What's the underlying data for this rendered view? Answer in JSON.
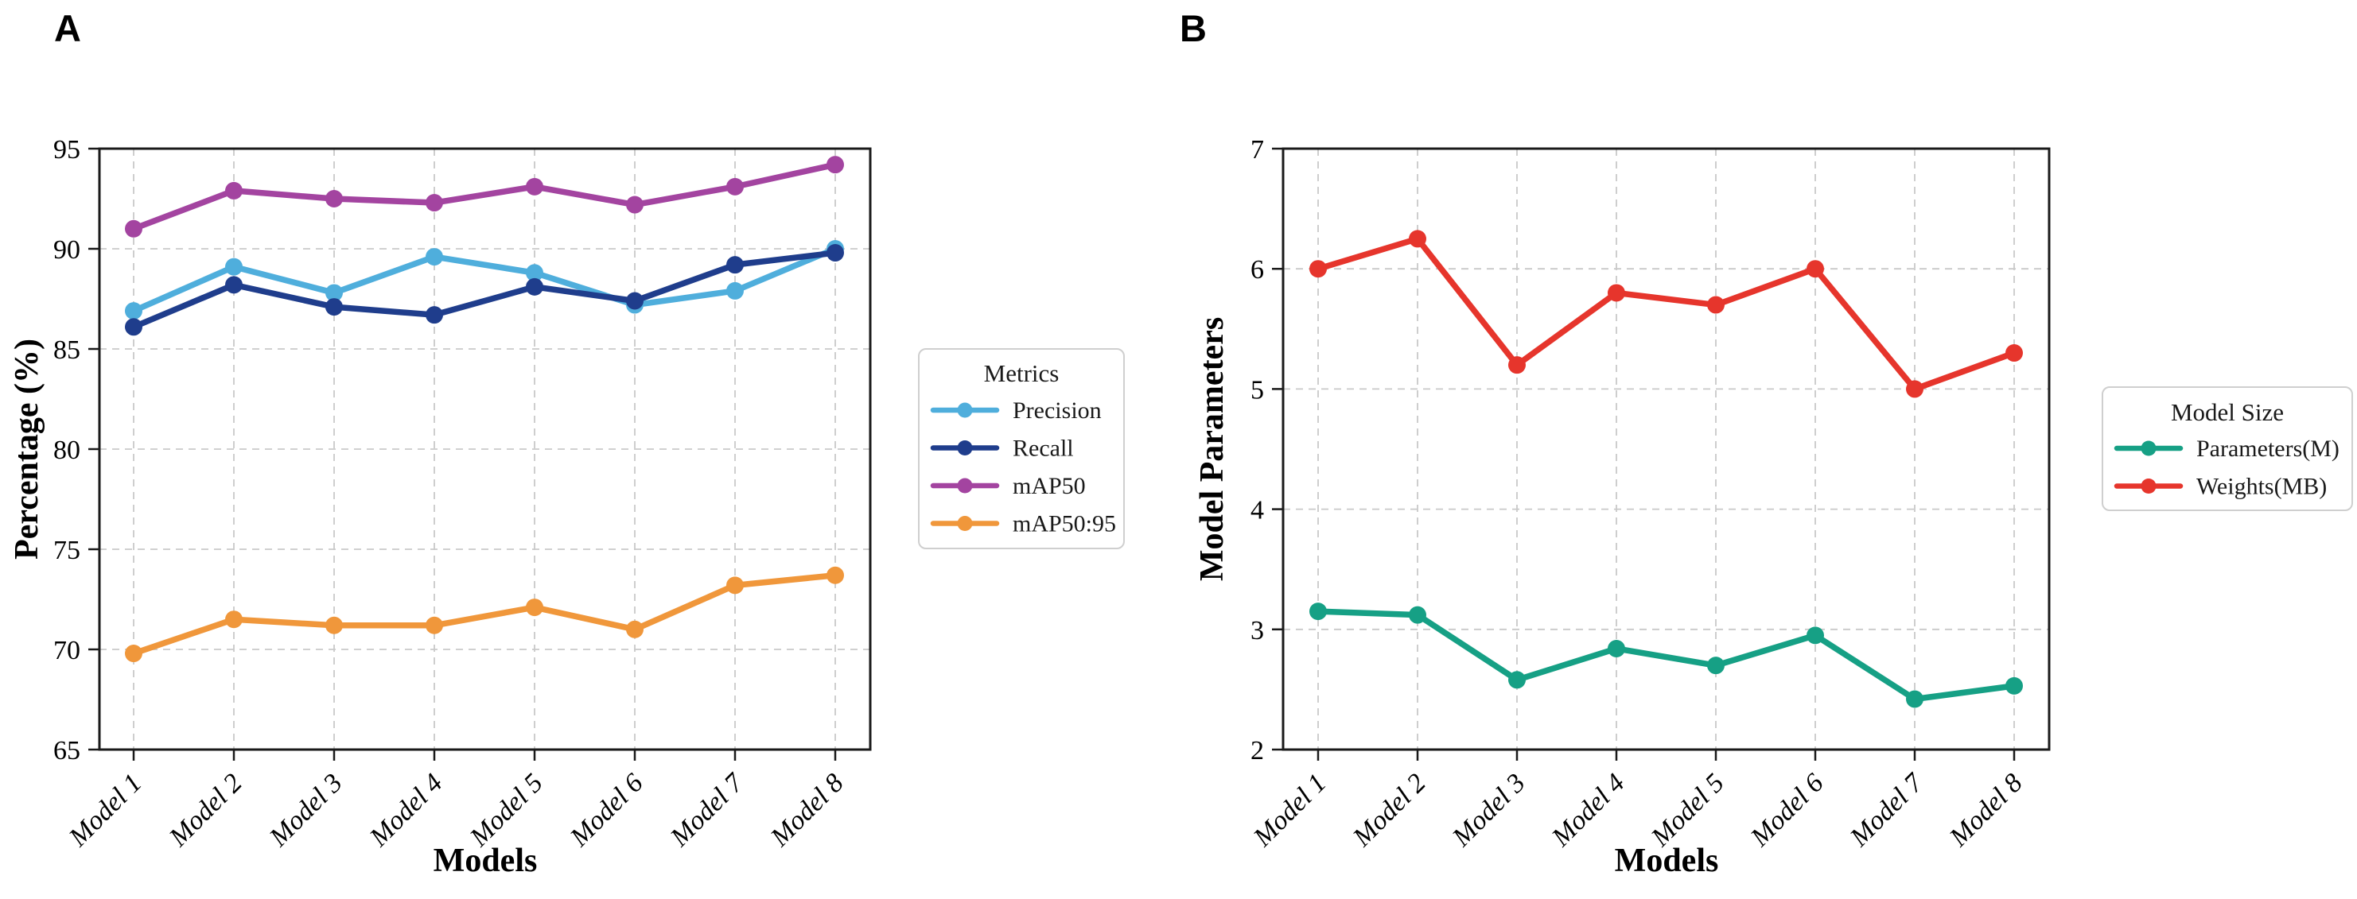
{
  "figure": {
    "background": "#FFFFFF"
  },
  "chart_data": [
    {
      "type": "line",
      "panel_label": "A",
      "xlabel": "Models",
      "ylabel": "Percentage (%)",
      "categories": [
        "Model 1",
        "Model 2",
        "Model 3",
        "Model 4",
        "Model 5",
        "Model 6",
        "Model 7",
        "Model 8"
      ],
      "ylim": [
        65,
        95
      ],
      "yticks": [
        65,
        70,
        75,
        80,
        85,
        90,
        95
      ],
      "grid": "dashed-both-axes",
      "legend": {
        "title": "Metrics",
        "position": "right-of-plot"
      },
      "series": [
        {
          "name": "Precision",
          "color": "#4FAEDC",
          "marker": "circle",
          "values": [
            86.9,
            89.1,
            87.8,
            89.6,
            88.8,
            87.2,
            87.9,
            90.0
          ]
        },
        {
          "name": "Recall",
          "color": "#1F3D8C",
          "marker": "circle",
          "values": [
            86.1,
            88.2,
            87.1,
            86.7,
            88.1,
            87.4,
            89.2,
            89.8
          ]
        },
        {
          "name": "mAP50",
          "color": "#A344A0",
          "marker": "circle",
          "values": [
            91.0,
            92.9,
            92.5,
            92.3,
            93.1,
            92.2,
            93.1,
            94.2
          ]
        },
        {
          "name": "mAP50:95",
          "color": "#F0973B",
          "marker": "circle",
          "values": [
            69.8,
            71.5,
            71.2,
            71.2,
            72.1,
            71.0,
            73.2,
            73.7
          ]
        }
      ]
    },
    {
      "type": "line",
      "panel_label": "B",
      "xlabel": "Models",
      "ylabel": "Model Parameters",
      "categories": [
        "Model 1",
        "Model 2",
        "Model 3",
        "Model 4",
        "Model 5",
        "Model 6",
        "Model 7",
        "Model 8"
      ],
      "ylim": [
        2,
        7
      ],
      "yticks": [
        2,
        3,
        4,
        5,
        6,
        7
      ],
      "grid": "dashed-both-axes",
      "legend": {
        "title": "Model Size",
        "position": "right-of-plot"
      },
      "series": [
        {
          "name": "Parameters(M)",
          "color": "#16A085",
          "marker": "circle",
          "values": [
            3.15,
            3.12,
            2.58,
            2.84,
            2.7,
            2.95,
            2.42,
            2.53
          ]
        },
        {
          "name": "Weights(MB)",
          "color": "#E6352C",
          "marker": "circle",
          "values": [
            6.0,
            6.25,
            5.2,
            5.8,
            5.7,
            6.0,
            5.0,
            5.3
          ]
        }
      ]
    }
  ]
}
